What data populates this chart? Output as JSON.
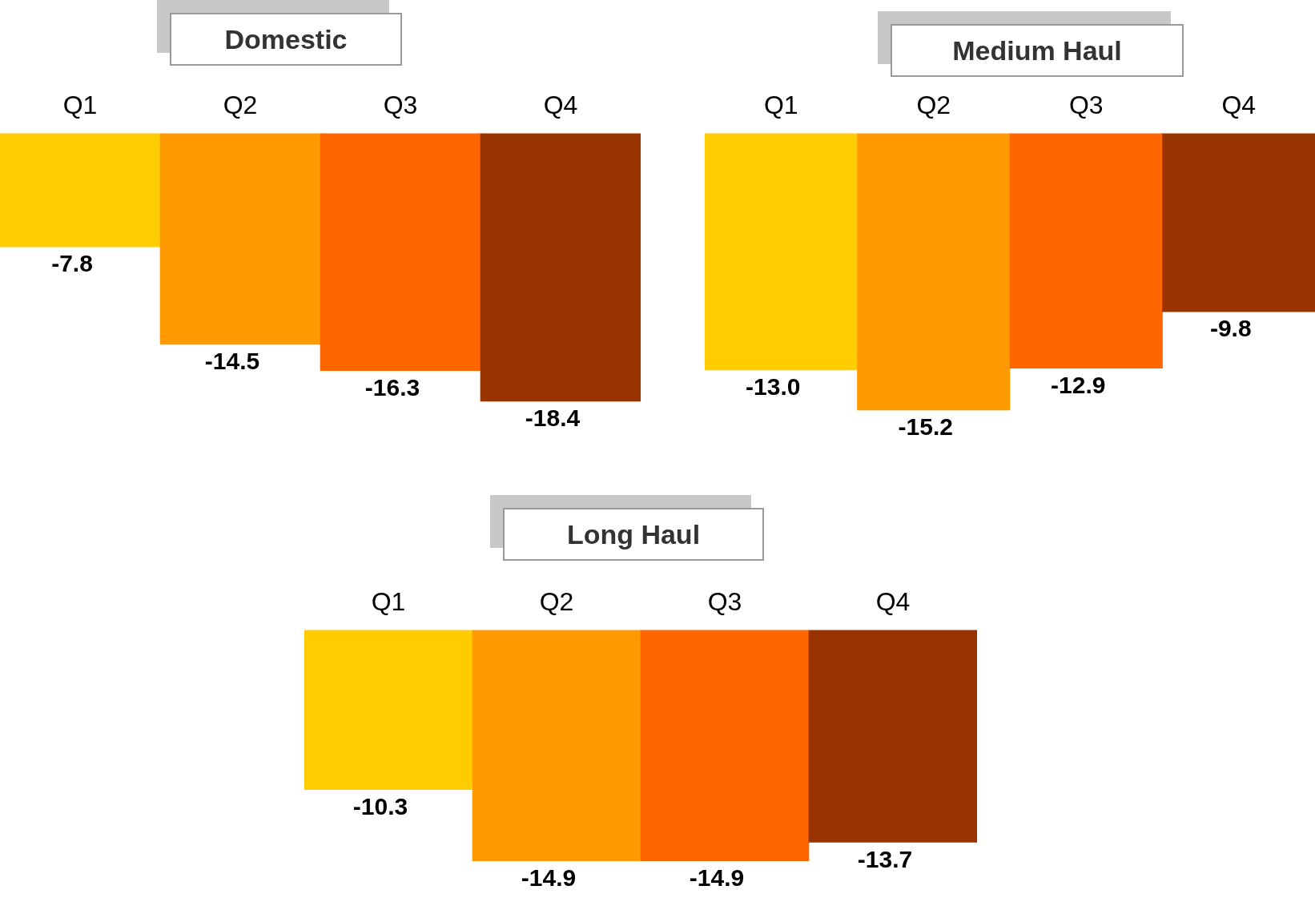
{
  "chart_data": [
    {
      "type": "bar",
      "title": "Domestic",
      "categories": [
        "Q1",
        "Q2",
        "Q3",
        "Q4"
      ],
      "values": [
        -7.8,
        -14.5,
        -16.3,
        -18.4
      ],
      "value_labels": [
        "-7.8",
        "-14.5",
        "-16.3",
        "-18.4"
      ],
      "colors": [
        "#ffcc00",
        "#ff9900",
        "#ff6600",
        "#993300"
      ],
      "tick_labels": "x",
      "grid": false,
      "legend": false
    },
    {
      "type": "bar",
      "title": "Medium Haul",
      "categories": [
        "Q1",
        "Q2",
        "Q3",
        "Q4"
      ],
      "values": [
        -13.0,
        -15.2,
        -12.9,
        -9.8
      ],
      "value_labels": [
        "-13.0",
        "-15.2",
        "-12.9",
        "-9.8"
      ],
      "colors": [
        "#ffcc00",
        "#ff9900",
        "#ff6600",
        "#993300"
      ],
      "tick_labels": "x",
      "grid": false,
      "legend": false
    },
    {
      "type": "bar",
      "title": "Long Haul",
      "categories": [
        "Q1",
        "Q2",
        "Q3",
        "Q4"
      ],
      "values": [
        -10.3,
        -14.9,
        -14.9,
        -13.7
      ],
      "value_labels": [
        "-10.3",
        "-14.9",
        "-14.9",
        "-13.7"
      ],
      "colors": [
        "#ffcc00",
        "#ff9900",
        "#ff6600",
        "#993300"
      ],
      "tick_labels": "x",
      "grid": false,
      "legend": false
    }
  ]
}
